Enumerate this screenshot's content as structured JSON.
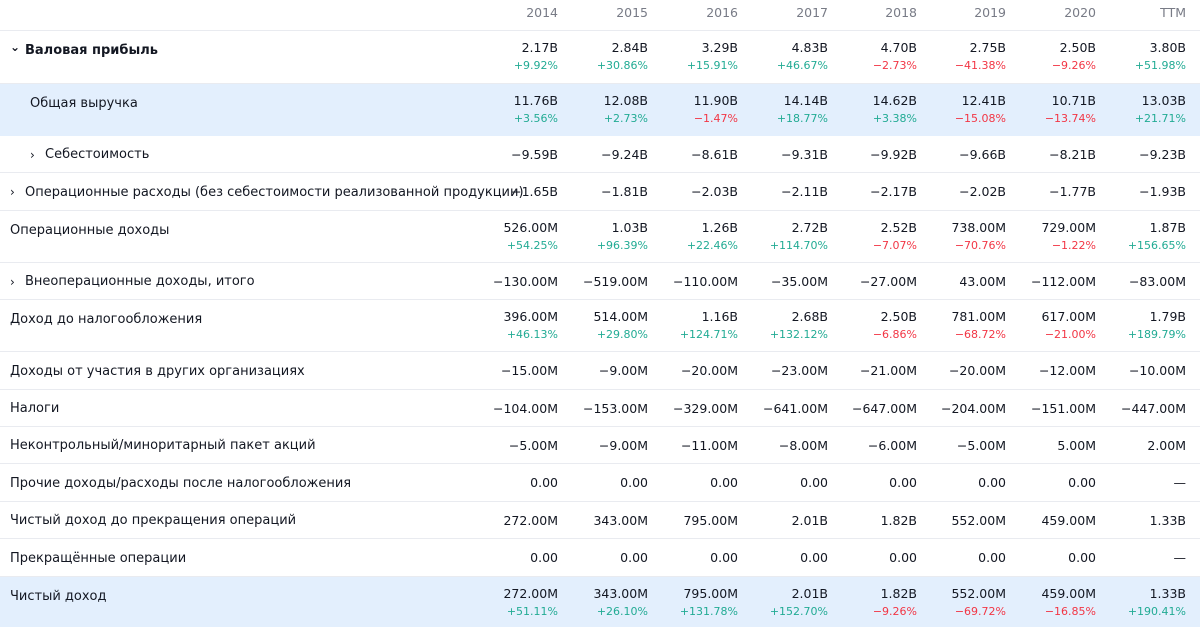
{
  "columns": [
    "2014",
    "2015",
    "2016",
    "2017",
    "2018",
    "2019",
    "2020",
    "TTM"
  ],
  "rows": [
    {
      "label": "Валовая прибыль",
      "bold": true,
      "chevron": "chevron-down-icon",
      "indent": 0,
      "highlight": false,
      "values": [
        "2.17B",
        "2.84B",
        "3.29B",
        "4.83B",
        "4.70B",
        "2.75B",
        "2.50B",
        "3.80B"
      ],
      "changes": [
        "+9.92%",
        "+30.86%",
        "+15.91%",
        "+46.67%",
        "−2.73%",
        "−41.38%",
        "−9.26%",
        "+51.98%"
      ]
    },
    {
      "label": "Общая выручка",
      "bold": false,
      "chevron": null,
      "indent": 1,
      "highlight": true,
      "values": [
        "11.76B",
        "12.08B",
        "11.90B",
        "14.14B",
        "14.62B",
        "12.41B",
        "10.71B",
        "13.03B"
      ],
      "changes": [
        "+3.56%",
        "+2.73%",
        "−1.47%",
        "+18.77%",
        "+3.38%",
        "−15.08%",
        "−13.74%",
        "+21.71%"
      ]
    },
    {
      "label": "Себестоимость",
      "bold": false,
      "chevron": "chevron-right-icon",
      "indent": 1,
      "highlight": false,
      "values": [
        "−9.59B",
        "−9.24B",
        "−8.61B",
        "−9.31B",
        "−9.92B",
        "−9.66B",
        "−8.21B",
        "−9.23B"
      ],
      "changes": null
    },
    {
      "label": "Операционные расходы (без себестоимости реализованной продукции)",
      "bold": false,
      "chevron": "chevron-right-icon",
      "indent": 0,
      "highlight": false,
      "values": [
        "−1.65B",
        "−1.81B",
        "−2.03B",
        "−2.11B",
        "−2.17B",
        "−2.02B",
        "−1.77B",
        "−1.93B"
      ],
      "changes": null
    },
    {
      "label": "Операционные доходы",
      "bold": false,
      "chevron": null,
      "indent": 0,
      "highlight": false,
      "values": [
        "526.00M",
        "1.03B",
        "1.26B",
        "2.72B",
        "2.52B",
        "738.00M",
        "729.00M",
        "1.87B"
      ],
      "changes": [
        "+54.25%",
        "+96.39%",
        "+22.46%",
        "+114.70%",
        "−7.07%",
        "−70.76%",
        "−1.22%",
        "+156.65%"
      ]
    },
    {
      "label": "Внеоперационные доходы, итого",
      "bold": false,
      "chevron": "chevron-right-icon",
      "indent": 0,
      "highlight": false,
      "values": [
        "−130.00M",
        "−519.00M",
        "−110.00M",
        "−35.00M",
        "−27.00M",
        "43.00M",
        "−112.00M",
        "−83.00M"
      ],
      "changes": null
    },
    {
      "label": "Доход до налогообложения",
      "bold": false,
      "chevron": null,
      "indent": 0,
      "highlight": false,
      "values": [
        "396.00M",
        "514.00M",
        "1.16B",
        "2.68B",
        "2.50B",
        "781.00M",
        "617.00M",
        "1.79B"
      ],
      "changes": [
        "+46.13%",
        "+29.80%",
        "+124.71%",
        "+132.12%",
        "−6.86%",
        "−68.72%",
        "−21.00%",
        "+189.79%"
      ]
    },
    {
      "label": "Доходы от участия в других организациях",
      "bold": false,
      "chevron": null,
      "indent": 0,
      "highlight": false,
      "values": [
        "−15.00M",
        "−9.00M",
        "−20.00M",
        "−23.00M",
        "−21.00M",
        "−20.00M",
        "−12.00M",
        "−10.00M"
      ],
      "changes": null
    },
    {
      "label": "Налоги",
      "bold": false,
      "chevron": null,
      "indent": 0,
      "highlight": false,
      "values": [
        "−104.00M",
        "−153.00M",
        "−329.00M",
        "−641.00M",
        "−647.00M",
        "−204.00M",
        "−151.00M",
        "−447.00M"
      ],
      "changes": null
    },
    {
      "label": "Неконтрольный/миноритарный пакет акций",
      "bold": false,
      "chevron": null,
      "indent": 0,
      "highlight": false,
      "values": [
        "−5.00M",
        "−9.00M",
        "−11.00M",
        "−8.00M",
        "−6.00M",
        "−5.00M",
        "5.00M",
        "2.00M"
      ],
      "changes": null
    },
    {
      "label": "Прочие доходы/расходы после налогообложения",
      "bold": false,
      "chevron": null,
      "indent": 0,
      "highlight": false,
      "values": [
        "0.00",
        "0.00",
        "0.00",
        "0.00",
        "0.00",
        "0.00",
        "0.00",
        "—"
      ],
      "changes": null
    },
    {
      "label": "Чистый доход до прекращения операций",
      "bold": false,
      "chevron": null,
      "indent": 0,
      "highlight": false,
      "values": [
        "272.00M",
        "343.00M",
        "795.00M",
        "2.01B",
        "1.82B",
        "552.00M",
        "459.00M",
        "1.33B"
      ],
      "changes": null
    },
    {
      "label": "Прекращённые операции",
      "bold": false,
      "chevron": null,
      "indent": 0,
      "highlight": false,
      "values": [
        "0.00",
        "0.00",
        "0.00",
        "0.00",
        "0.00",
        "0.00",
        "0.00",
        "—"
      ],
      "changes": null
    },
    {
      "label": "Чистый доход",
      "bold": false,
      "chevron": null,
      "indent": 0,
      "highlight": true,
      "values": [
        "272.00M",
        "343.00M",
        "795.00M",
        "2.01B",
        "1.82B",
        "552.00M",
        "459.00M",
        "1.33B"
      ],
      "changes": [
        "+51.11%",
        "+26.10%",
        "+131.78%",
        "+152.70%",
        "−9.26%",
        "−69.72%",
        "−16.85%",
        "+190.41%"
      ]
    }
  ],
  "colors": {
    "positive": "#22ab94",
    "negative": "#f23645",
    "highlight": "#e3effd"
  }
}
